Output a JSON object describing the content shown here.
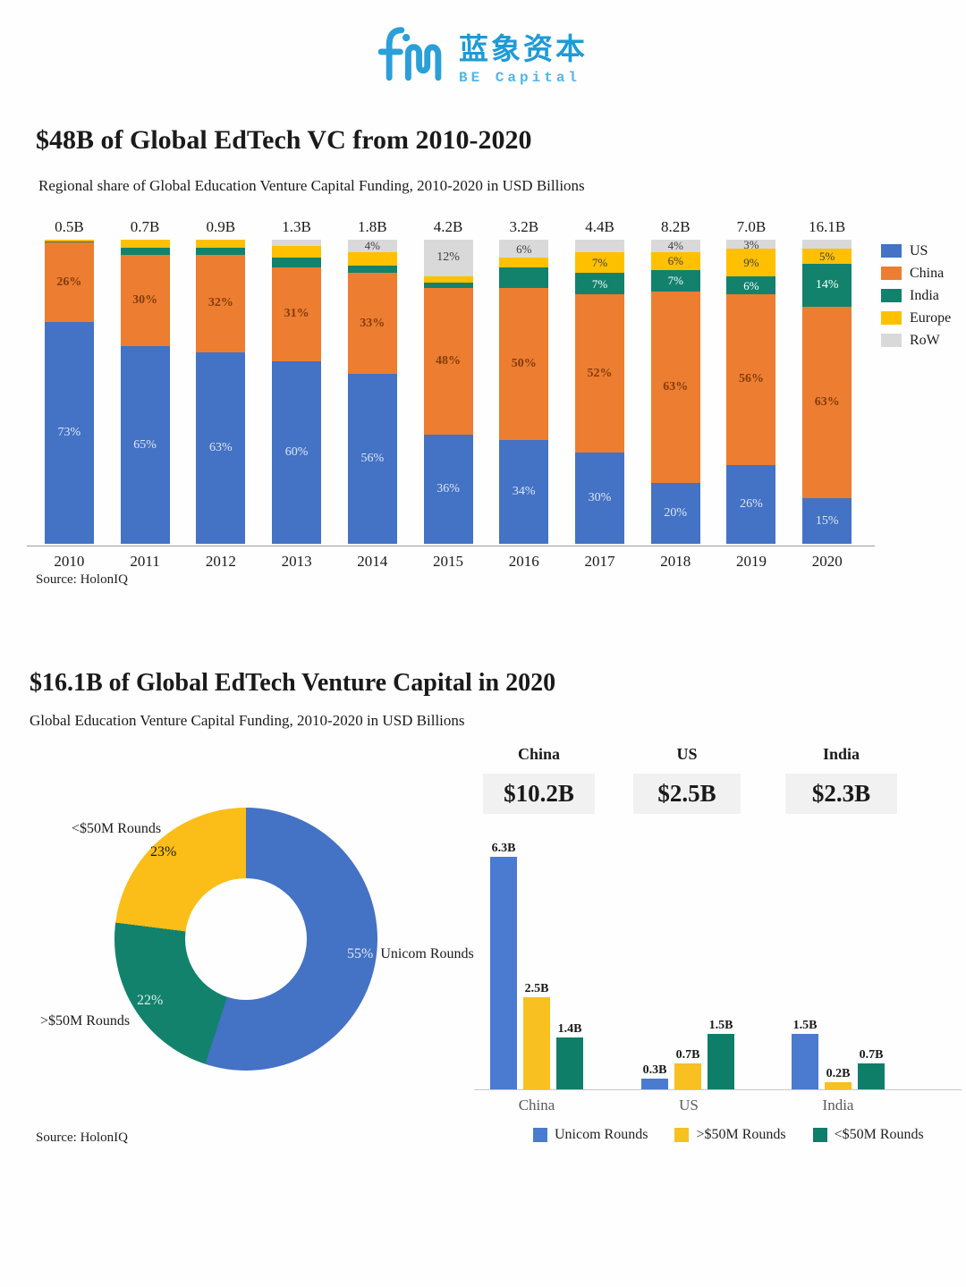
{
  "logo": {
    "name_cn": "蓝象资本",
    "name_en": "BE Capital",
    "brand_color": "#2b9fd8"
  },
  "chart_data": [
    {
      "type": "bar",
      "variant": "stacked-100",
      "title": "$48B of Global EdTech VC from 2010-2020",
      "subtitle": "Regional share of Global Education Venture Capital Funding, 2010-2020 in USD Billions",
      "source": "Source: HolonIQ",
      "legend_position": "right",
      "categories": [
        "2010",
        "2011",
        "2012",
        "2013",
        "2014",
        "2015",
        "2016",
        "2017",
        "2018",
        "2019",
        "2020"
      ],
      "totals": [
        "0.5B",
        "0.7B",
        "0.9B",
        "1.3B",
        "1.8B",
        "4.2B",
        "3.2B",
        "4.4B",
        "8.2B",
        "7.0B",
        "16.1B"
      ],
      "series": [
        {
          "name": "US",
          "color": "#4472c4",
          "label_color": "#dce8f8",
          "label_bold": false,
          "values": [
            73,
            65,
            63,
            60,
            56,
            36,
            34,
            30,
            20,
            26,
            15
          ],
          "labels": [
            "73%",
            "65%",
            "63%",
            "60%",
            "56%",
            "36%",
            "34%",
            "30%",
            "20%",
            "26%",
            "15%"
          ]
        },
        {
          "name": "China",
          "color": "#ed7d31",
          "label_color": "#833c0b",
          "label_bold": true,
          "values": [
            26,
            30,
            32,
            31,
            33,
            48,
            50,
            52,
            63,
            56,
            63
          ],
          "labels": [
            "26%",
            "30%",
            "32%",
            "31%",
            "33%",
            "48%",
            "50%",
            "52%",
            "63%",
            "56%",
            "63%"
          ]
        },
        {
          "name": "India",
          "color": "#12826c",
          "label_color": "#ffffff",
          "label_bold": false,
          "values": [
            0.5,
            2.5,
            2.5,
            3,
            2.5,
            2,
            7,
            7,
            7,
            6,
            14
          ],
          "labels": [
            null,
            null,
            null,
            null,
            null,
            null,
            null,
            "7%",
            "7%",
            "6%",
            "14%"
          ]
        },
        {
          "name": "Europe",
          "color": "#ffc000",
          "label_color": "#3d3d3d",
          "label_bold": false,
          "values": [
            0.5,
            2.5,
            2.5,
            4,
            4.5,
            2,
            3,
            7,
            6,
            9,
            5
          ],
          "labels": [
            null,
            null,
            null,
            null,
            null,
            null,
            null,
            "7%",
            "6%",
            "9%",
            "5%"
          ]
        },
        {
          "name": "RoW",
          "color": "#d9d9d9",
          "label_color": "#404040",
          "label_bold": false,
          "values": [
            0,
            0,
            0,
            2,
            4,
            12,
            6,
            4,
            4,
            3,
            3
          ],
          "labels": [
            null,
            null,
            null,
            null,
            "4%",
            "12%",
            "6%",
            null,
            "4%",
            "3%",
            null
          ]
        }
      ]
    },
    {
      "type": "pie",
      "variant": "donut",
      "title": "$16.1B of Global EdTech Venture Capital in 2020",
      "subtitle": "Global Education Venture Capital Funding, 2010-2020 in USD Billions",
      "source": "Source: HolonIQ",
      "slices": [
        {
          "label": "Unicom Rounds",
          "pct": 55,
          "pct_text": "55%",
          "color": "#4472c4"
        },
        {
          "label": ">$50M Rounds",
          "pct": 22,
          "pct_text": "22%",
          "color": "#12826c"
        },
        {
          "label": "<$50M Rounds",
          "pct": 23,
          "pct_text": "23%",
          "color": "#fbbd17"
        }
      ]
    },
    {
      "type": "bar",
      "variant": "grouped",
      "categories": [
        "China",
        "US",
        "India"
      ],
      "ymax": 6.3,
      "headers": [
        {
          "country": "China",
          "value": "$10.2B"
        },
        {
          "country": "US",
          "value": "$2.5B"
        },
        {
          "country": "India",
          "value": "$2.3B"
        }
      ],
      "series": [
        {
          "name": "Unicom Rounds",
          "color": "#4a7bd0",
          "values": [
            6.3,
            0.3,
            1.5
          ],
          "labels": [
            "6.3B",
            "0.3B",
            "1.5B"
          ]
        },
        {
          "name": ">$50M Rounds",
          "color": "#f8c020",
          "values": [
            2.5,
            0.7,
            0.2
          ],
          "labels": [
            "2.5B",
            "0.7B",
            "0.2B"
          ]
        },
        {
          "name": "<$50M Rounds",
          "color": "#0e7e69",
          "values": [
            1.4,
            1.5,
            0.7
          ],
          "labels": [
            "1.4B",
            "1.5B",
            "0.7B"
          ]
        }
      ]
    }
  ]
}
